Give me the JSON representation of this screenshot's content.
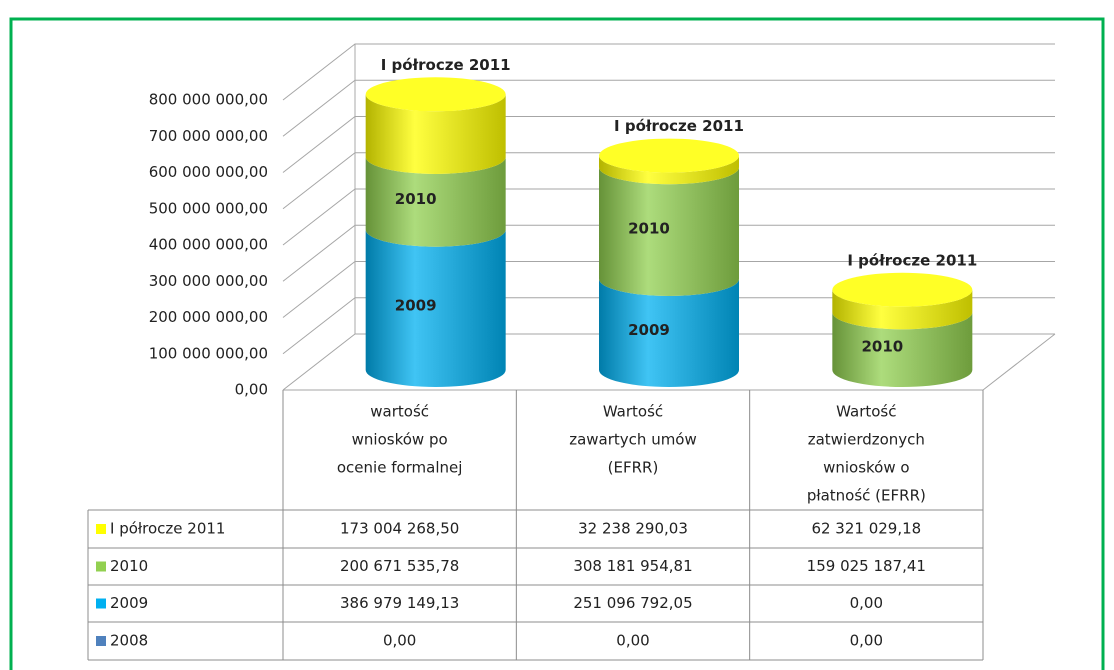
{
  "chart_data": {
    "type": "bar3d_cylinder_stacked",
    "categories": [
      [
        "wartość",
        "wniosków   po",
        "ocenie formalnej"
      ],
      [
        "Wartość",
        "zawartych umów",
        "(EFRR)"
      ],
      [
        "Wartość",
        "zatwierdzonych",
        "wniosków o",
        "płatność (EFRR)"
      ]
    ],
    "series": [
      {
        "name": "2008",
        "color": "#4f81bd",
        "values": [
          0,
          0,
          0
        ],
        "value_labels": [
          "0,00",
          "0,00",
          "0,00"
        ]
      },
      {
        "name": "2009",
        "color": "#00b0f0",
        "values": [
          386979149.13,
          251096792.05,
          0
        ],
        "value_labels": [
          "386 979 149,13",
          "251 096 792,05",
          "0,00"
        ]
      },
      {
        "name": "2010",
        "color": "#92d050",
        "values": [
          200671535.78,
          308181954.81,
          159025187.41
        ],
        "value_labels": [
          "200 671 535,78",
          "308 181 954,81",
          "159 025 187,41"
        ]
      },
      {
        "name": "I półrocze 2011",
        "color": "#ffff00",
        "values": [
          173004268.5,
          32238290.03,
          62321029.18
        ],
        "value_labels": [
          "173 004 268,50",
          "32 238 290,03",
          "62 321 029,18"
        ]
      }
    ],
    "ylim": [
      0,
      800000000
    ],
    "yticks": [
      {
        "value": 0,
        "label": "0,00"
      },
      {
        "value": 100000000,
        "label": "100 000 000,00"
      },
      {
        "value": 200000000,
        "label": "200 000 000,00"
      },
      {
        "value": 300000000,
        "label": "300 000 000,00"
      },
      {
        "value": 400000000,
        "label": "400 000 000,00"
      },
      {
        "value": 500000000,
        "label": "500 000 000,00"
      },
      {
        "value": 600000000,
        "label": "600 000 000,00"
      },
      {
        "value": 700000000,
        "label": "700 000 000,00"
      },
      {
        "value": 800000000,
        "label": "800 000 000,00"
      }
    ],
    "grid": true,
    "legend": "table"
  }
}
